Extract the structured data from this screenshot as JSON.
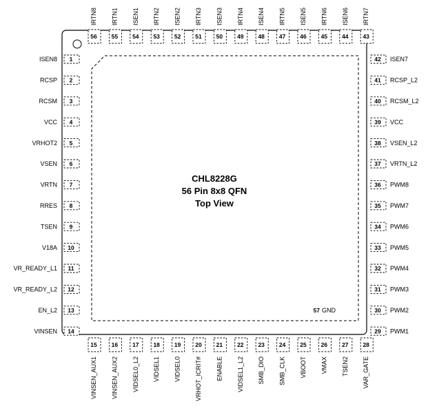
{
  "chip": {
    "part": "CHL8228G",
    "package": "56 Pin 8x8 QFN",
    "view": "Top View"
  },
  "gnd_pad": {
    "number": "57",
    "label": "GND"
  },
  "pins": {
    "left": [
      {
        "num": "1",
        "name": "ISEN8"
      },
      {
        "num": "2",
        "name": "RCSP"
      },
      {
        "num": "3",
        "name": "RCSM"
      },
      {
        "num": "4",
        "name": "VCC"
      },
      {
        "num": "5",
        "name": "VRHOT2"
      },
      {
        "num": "6",
        "name": "VSEN"
      },
      {
        "num": "7",
        "name": "VRTN"
      },
      {
        "num": "8",
        "name": "RRES"
      },
      {
        "num": "9",
        "name": "TSEN"
      },
      {
        "num": "10",
        "name": "V18A"
      },
      {
        "num": "11",
        "name": "VR_READY_L1"
      },
      {
        "num": "12",
        "name": "VR_READY_L2"
      },
      {
        "num": "13",
        "name": "EN_L2"
      },
      {
        "num": "14",
        "name": "VINSEN"
      }
    ],
    "bottom": [
      {
        "num": "15",
        "name": "VINSEN_AUX1"
      },
      {
        "num": "16",
        "name": "VINSEN_AUX2"
      },
      {
        "num": "17",
        "name": "VIDSEL0_L2"
      },
      {
        "num": "18",
        "name": "VIDSEL1"
      },
      {
        "num": "19",
        "name": "VIDSEL0"
      },
      {
        "num": "20",
        "name": "VRHOT_ICRIT#"
      },
      {
        "num": "21",
        "name": "ENABLE"
      },
      {
        "num": "22",
        "name": "VIDSEL1_L2"
      },
      {
        "num": "23",
        "name": "SMB_DIO"
      },
      {
        "num": "24",
        "name": "SMB_CLK"
      },
      {
        "num": "25",
        "name": "VBOOT"
      },
      {
        "num": "26",
        "name": "VMAX"
      },
      {
        "num": "27",
        "name": "TSEN2"
      },
      {
        "num": "28",
        "name": "VAR_GATE"
      }
    ],
    "right": [
      {
        "num": "29",
        "name": "PWM1"
      },
      {
        "num": "30",
        "name": "PWM2"
      },
      {
        "num": "31",
        "name": "PWM3"
      },
      {
        "num": "32",
        "name": "PWM4"
      },
      {
        "num": "33",
        "name": "PWM5"
      },
      {
        "num": "34",
        "name": "PWM6"
      },
      {
        "num": "35",
        "name": "PWM7"
      },
      {
        "num": "36",
        "name": "PWM8"
      },
      {
        "num": "37",
        "name": "VRTN_L2"
      },
      {
        "num": "38",
        "name": "VSEN_L2"
      },
      {
        "num": "39",
        "name": "VCC"
      },
      {
        "num": "40",
        "name": "RCSM_L2"
      },
      {
        "num": "41",
        "name": "RCSP_L2"
      },
      {
        "num": "42",
        "name": "ISEN7"
      }
    ],
    "top": [
      {
        "num": "43",
        "name": "IRTN7"
      },
      {
        "num": "44",
        "name": "ISEN6"
      },
      {
        "num": "45",
        "name": "IRTN6"
      },
      {
        "num": "46",
        "name": "ISEN5"
      },
      {
        "num": "47",
        "name": "IRTN5"
      },
      {
        "num": "48",
        "name": "ISEN4"
      },
      {
        "num": "49",
        "name": "IRTN4"
      },
      {
        "num": "50",
        "name": "ISEN3"
      },
      {
        "num": "51",
        "name": "IRTN3"
      },
      {
        "num": "52",
        "name": "ISEN2"
      },
      {
        "num": "53",
        "name": "IRTN2"
      },
      {
        "num": "54",
        "name": "ISEN1"
      },
      {
        "num": "55",
        "name": "IRTN1"
      },
      {
        "num": "56",
        "name": "IRTN8"
      }
    ]
  }
}
